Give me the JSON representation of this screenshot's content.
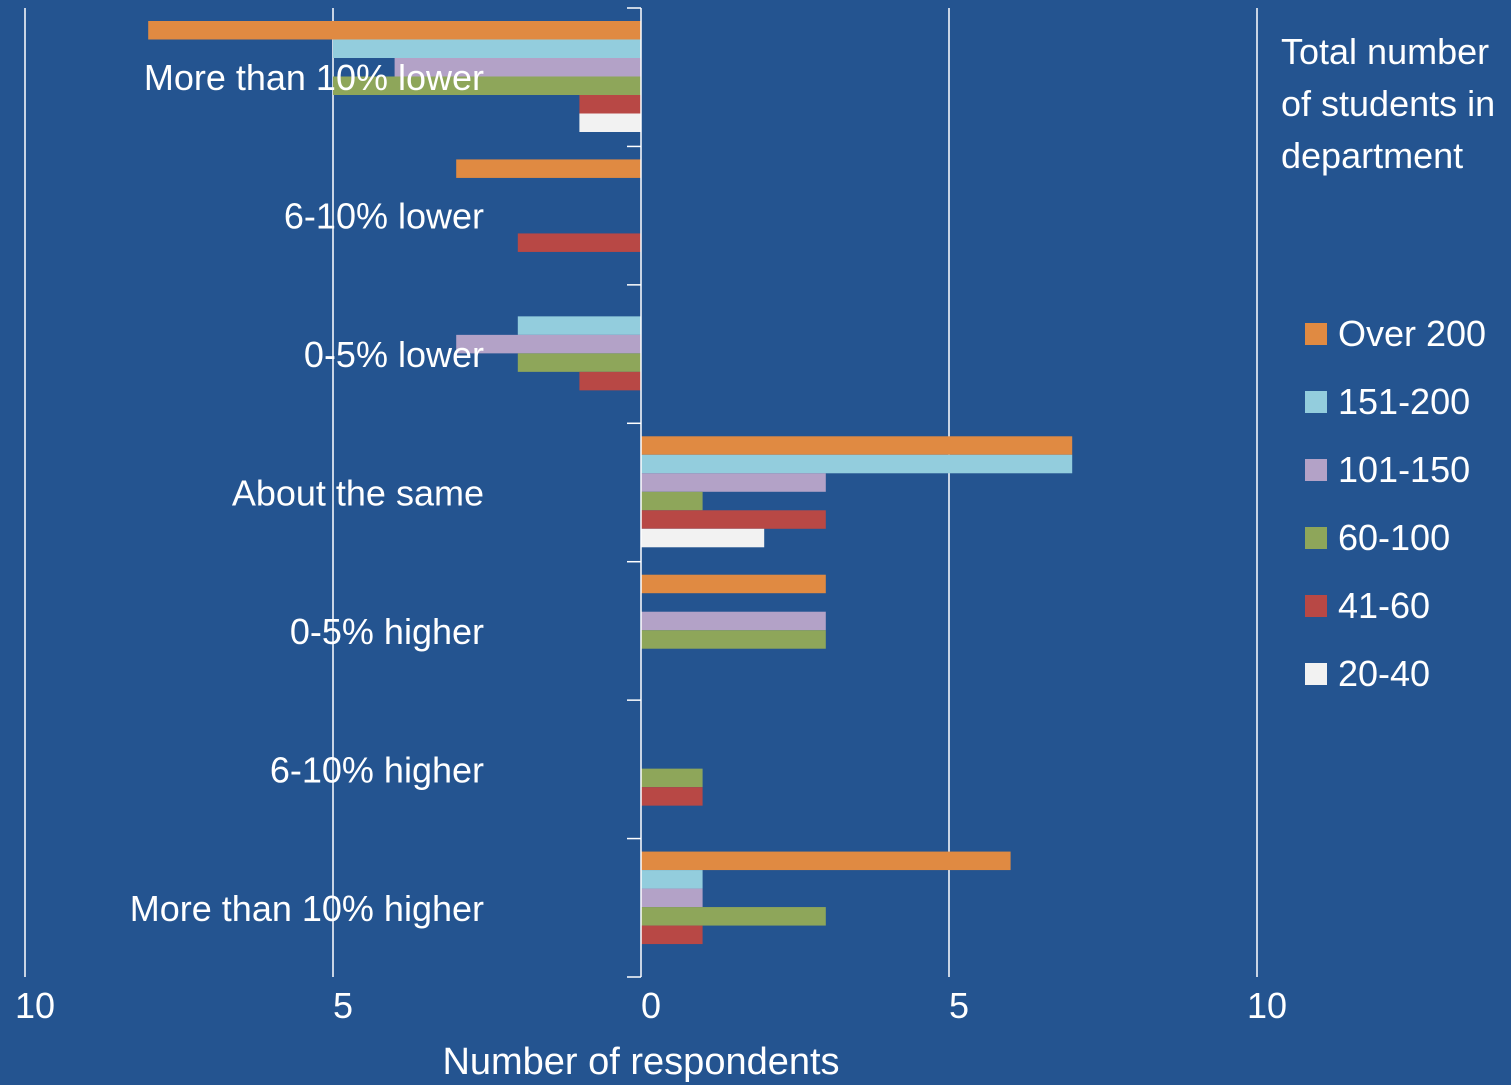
{
  "chart_data": {
    "type": "bar",
    "orientation": "horizontal",
    "categories": [
      "More than 10% lower",
      "6-10% lower",
      "0-5% lower",
      "About the same",
      "0-5% higher",
      "6-10% higher",
      "More than 10% higher"
    ],
    "series": [
      {
        "name": "Over 200",
        "color": "#e08a42",
        "values": [
          -8,
          -3,
          0,
          7,
          3,
          0,
          6
        ]
      },
      {
        "name": "151-200",
        "color": "#93cddd",
        "values": [
          -5,
          0,
          -2,
          7,
          0,
          0,
          1
        ]
      },
      {
        "name": "101-150",
        "color": "#b3a2c7",
        "values": [
          -4,
          0,
          -3,
          3,
          3,
          0,
          1
        ]
      },
      {
        "name": "60-100",
        "color": "#8ea65a",
        "values": [
          -5,
          0,
          -2,
          1,
          3,
          1,
          3
        ]
      },
      {
        "name": "41-60",
        "color": "#b84845",
        "values": [
          -1,
          -2,
          -1,
          3,
          0,
          1,
          1
        ]
      },
      {
        "name": "20-40",
        "color": "#f2f2f2",
        "values": [
          -1,
          0,
          0,
          2,
          0,
          0,
          0
        ]
      }
    ],
    "xlim": [
      -10,
      10
    ],
    "xticks": [
      -10,
      -5,
      0,
      5,
      10
    ],
    "xtick_labels": [
      "10",
      "5",
      "0",
      "5",
      "10"
    ],
    "xlabel": "Number of respondents",
    "ylabel": "",
    "title": "",
    "grid": true,
    "legend": {
      "title": "Total number of students in department",
      "position": "right"
    }
  }
}
